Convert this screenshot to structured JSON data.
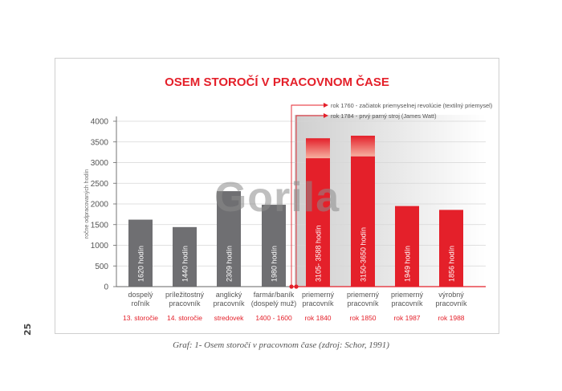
{
  "page_number": "25",
  "caption": "Graf: 1- Osem storočí v pracovnom čase (zdroj: Schor, 1991)",
  "watermark": "Gorila",
  "colors": {
    "red": "#e4202a",
    "grey": "#6f6f72",
    "light_red": "#f6b5a3",
    "shade": "#d4d4d4"
  },
  "chart_data": {
    "type": "bar",
    "title": "OSEM STOROČÍ V PRACOVNOM ČASE",
    "ylabel": "ročne odpracovaných hodín",
    "ylim": [
      0,
      4000
    ],
    "yticks": [
      "0",
      "500",
      "1000",
      "1500",
      "2000",
      "2500",
      "3000",
      "3500",
      "4000"
    ],
    "annotations": [
      "rok 1760 - začiatok priemyselnej revolúcie (textilný priemysel)",
      "rok 1784 - prvý parný stroj (James Watt)"
    ],
    "bars": [
      {
        "category": [
          "dospelý",
          "roľník"
        ],
        "period": "13. storočie",
        "value": 1620,
        "label": "1620 hodín",
        "color": "grey"
      },
      {
        "category": [
          "príležitostný",
          "pracovník"
        ],
        "period": "14. storočie",
        "value": 1440,
        "label": "1440 hodín",
        "color": "grey"
      },
      {
        "category": [
          "anglický",
          "pracovník"
        ],
        "period": "stredovek",
        "value": 2309,
        "label": "2309 hodín",
        "color": "grey"
      },
      {
        "category": [
          "farmár/baník",
          "(dospelý muž)"
        ],
        "period": "1400 - 1600",
        "value": 1980,
        "label": "1980 hodín",
        "color": "grey"
      },
      {
        "category": [
          "priemerný",
          "pracovník"
        ],
        "period": "rok 1840",
        "value": 3105,
        "high": 3588,
        "label": "3105- 3588 hodín",
        "color": "red"
      },
      {
        "category": [
          "priemerný",
          "pracovník"
        ],
        "period": "rok 1850",
        "value": 3150,
        "high": 3650,
        "label": "3150-3650 hodín",
        "color": "red"
      },
      {
        "category": [
          "priemerný",
          "pracovník"
        ],
        "period": "rok 1987",
        "value": 1949,
        "label": "1949 hodín",
        "color": "red"
      },
      {
        "category": [
          "výrobný",
          "pracovník"
        ],
        "period": "rok 1988",
        "value": 1856,
        "label": "1856 hodín",
        "color": "red"
      }
    ]
  }
}
